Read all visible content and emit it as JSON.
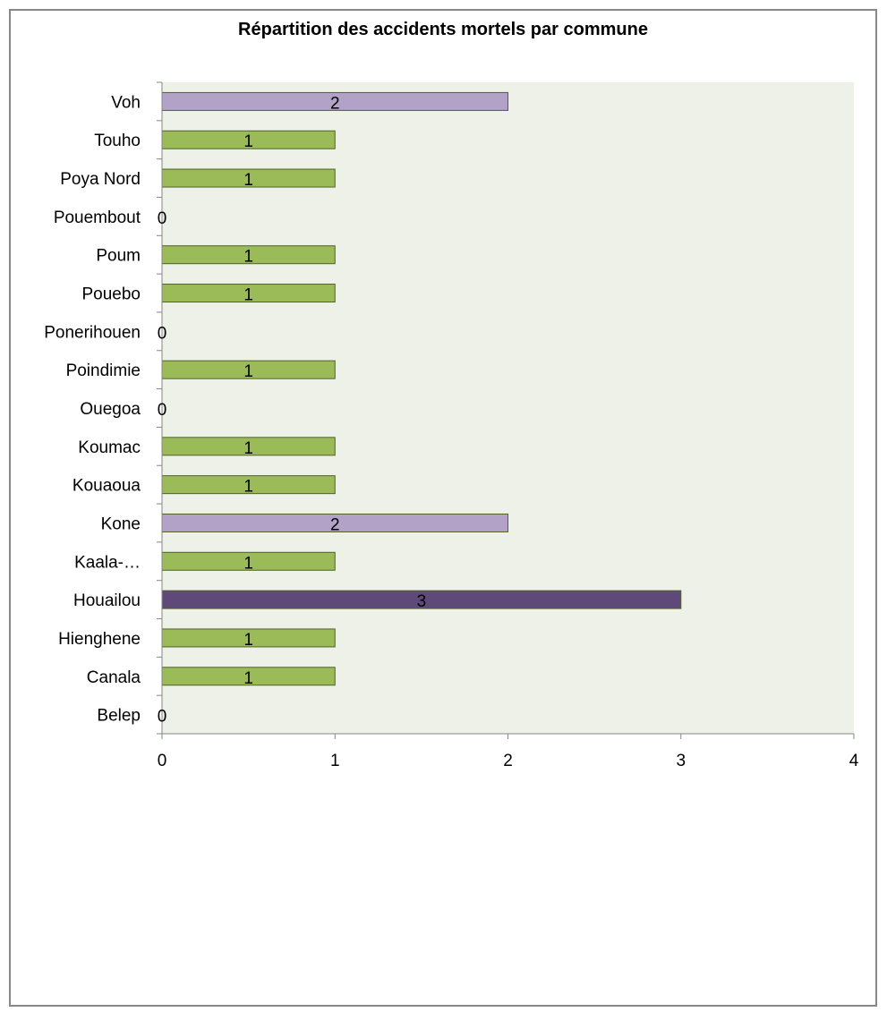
{
  "chart_data": {
    "type": "bar",
    "orientation": "horizontal",
    "title": "Répartition des accidents mortels par commune",
    "xlabel": "",
    "ylabel": "",
    "xlim": [
      0,
      4
    ],
    "xticks": [
      0,
      1,
      2,
      3,
      4
    ],
    "grid": false,
    "legend": "none",
    "categories": [
      "Belep",
      "Canala",
      "Hienghene",
      "Houailou",
      "Kaala-…",
      "Kone",
      "Kouaoua",
      "Koumac",
      "Ouegoa",
      "Poindimie",
      "Ponerihouen",
      "Pouebo",
      "Poum",
      "Pouembout",
      "Poya Nord",
      "Touho",
      "Voh"
    ],
    "values": [
      0,
      1,
      1,
      3,
      1,
      2,
      1,
      1,
      0,
      1,
      0,
      1,
      1,
      0,
      1,
      1,
      2
    ],
    "colors": {
      "plot_background": "#eef1e7",
      "value_1": "#9bbb59",
      "value_2": "#b2a2c7",
      "value_3": "#5f497a",
      "bar_border": "#4f6228",
      "axis": "#868686",
      "frame": "#878787"
    }
  }
}
